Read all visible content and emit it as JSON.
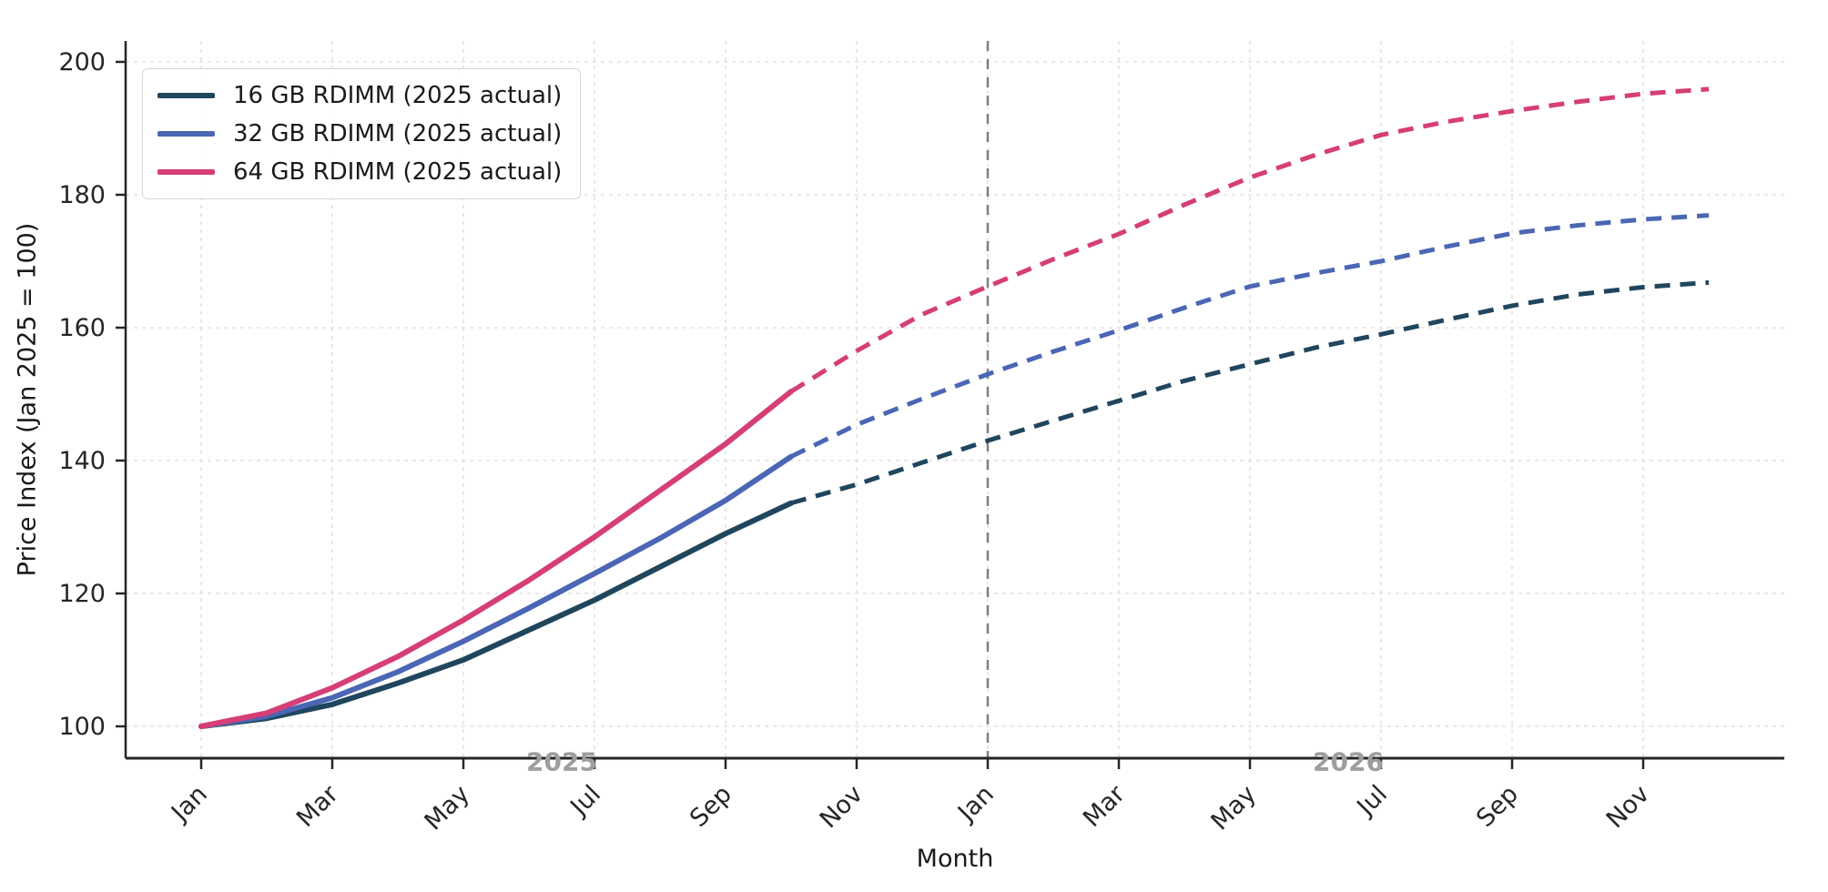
{
  "style": {
    "background": "#ffffff",
    "grid_color": "#e2e2e2",
    "spine_color": "#262626",
    "tick_label_color": "#262626",
    "axis_label_color": "#1a1a1a",
    "year_label_color": "#9e9e9e",
    "divider_color": "#7f7f7f",
    "legend_border_color": "#d6d6d6"
  },
  "chart_data": {
    "type": "line",
    "title": "",
    "xlabel": "Month",
    "ylabel": "Price Index (Jan 2025 = 100)",
    "x": [
      "2025-01",
      "2025-02",
      "2025-03",
      "2025-04",
      "2025-05",
      "2025-06",
      "2025-07",
      "2025-08",
      "2025-09",
      "2025-10",
      "2025-11",
      "2025-12",
      "2026-01",
      "2026-02",
      "2026-03",
      "2026-04",
      "2026-05",
      "2026-06",
      "2026-07",
      "2026-08",
      "2026-09",
      "2026-10",
      "2026-11",
      "2026-12"
    ],
    "x_tick_indices": [
      0,
      2,
      4,
      6,
      8,
      10,
      12,
      14,
      16,
      18,
      20,
      22
    ],
    "x_tick_labels": [
      "Jan",
      "Mar",
      "May",
      "Jul",
      "Sep",
      "Nov",
      "Jan",
      "Mar",
      "May",
      "Jul",
      "Sep",
      "Nov"
    ],
    "y_ticks": [
      100,
      120,
      140,
      160,
      180,
      200
    ],
    "ylim": [
      95.2,
      203.2
    ],
    "grid": true,
    "legend_position": "upper-left",
    "actual_through_index": 9,
    "divider": {
      "at_index": 12,
      "color": "#7f7f7f",
      "style": "dashed"
    },
    "year_labels": [
      {
        "text": "2025",
        "center_index": 5.5
      },
      {
        "text": "2026",
        "center_index": 17.5
      }
    ],
    "series": [
      {
        "name": "16 GB RDIMM (2025 actual)",
        "color": "#20465e",
        "values": [
          100,
          101.2,
          103.3,
          106.5,
          110.0,
          114.5,
          119.0,
          124.0,
          129.0,
          133.6,
          136.4,
          139.7,
          143.0,
          146.0,
          149.0,
          152.0,
          154.5,
          157.0,
          159.0,
          161.2,
          163.3,
          165.0,
          166.1,
          166.8
        ]
      },
      {
        "name": "32 GB RDIMM (2025 actual)",
        "color": "#4b66b4",
        "values": [
          100,
          101.5,
          104.3,
          108.2,
          112.8,
          117.8,
          123.0,
          128.3,
          134.0,
          140.6,
          145.4,
          149.3,
          153.0,
          156.4,
          159.6,
          163.0,
          166.2,
          168.2,
          170.0,
          172.2,
          174.2,
          175.4,
          176.3,
          176.9
        ]
      },
      {
        "name": "64 GB RDIMM (2025 actual)",
        "color": "#d53e76",
        "values": [
          100,
          102.0,
          105.8,
          110.5,
          116.0,
          122.0,
          128.5,
          135.5,
          142.5,
          150.4,
          156.5,
          162.0,
          166.2,
          170.3,
          174.1,
          178.5,
          182.6,
          186.0,
          189.0,
          191.0,
          192.6,
          194.0,
          195.2,
          195.9
        ]
      }
    ]
  }
}
